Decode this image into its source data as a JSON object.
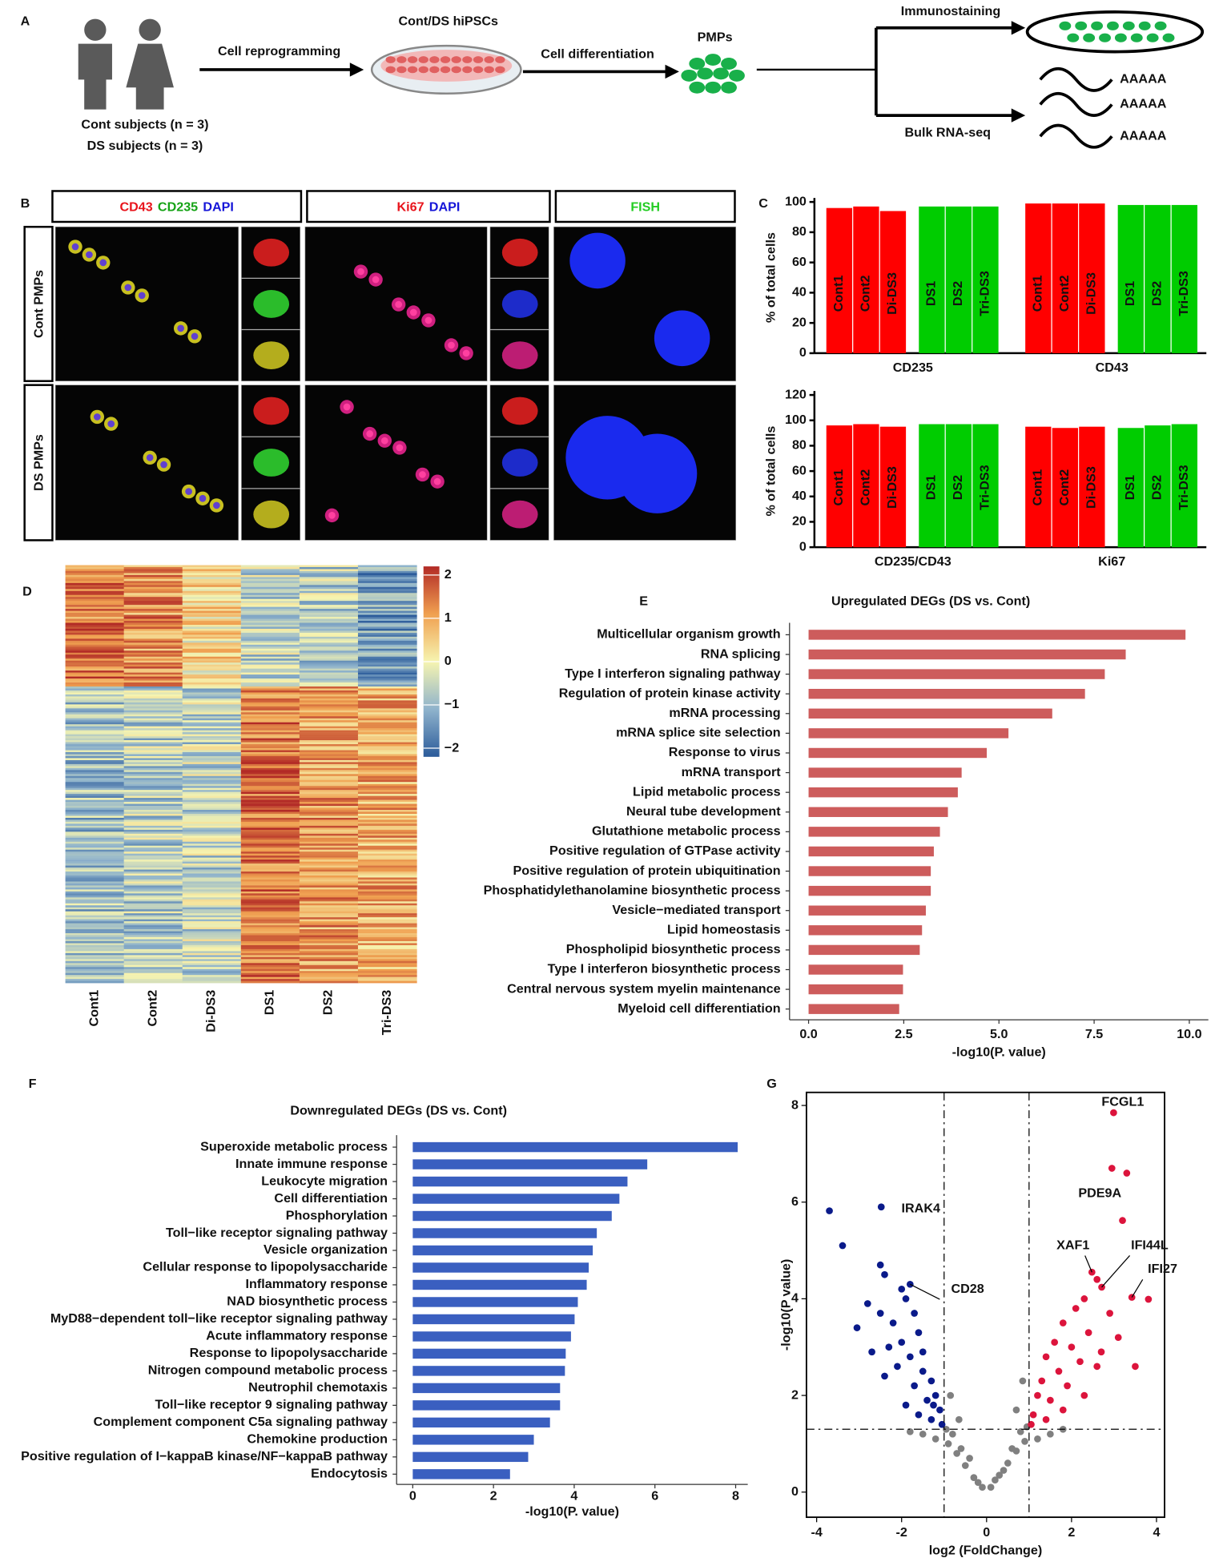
{
  "panel_labels": [
    "A",
    "B",
    "C",
    "D",
    "E",
    "F",
    "G"
  ],
  "panel_a": {
    "subjects": [
      "Cont subjects (n = 3)",
      "DS subjects (n = 3)"
    ],
    "steps": [
      "Cell reprogramming",
      "Cell differentiation",
      "Immunostaining",
      "Bulk RNA-seq"
    ],
    "nodes": [
      "Cont/DS hiPSCs",
      "PMPs"
    ],
    "poly_a": [
      "AAAAA",
      "AAAAA",
      "AAAAA"
    ]
  },
  "panel_b": {
    "headers": [
      [
        {
          "text": "CD43",
          "color": "#e8141c"
        },
        {
          "text": "CD235",
          "color": "#16a316"
        },
        {
          "text": "DAPI",
          "color": "#1515d8"
        }
      ],
      [
        {
          "text": "Ki67",
          "color": "#e8141c"
        },
        {
          "text": "DAPI",
          "color": "#1515d8"
        }
      ],
      [
        {
          "text": "FISH",
          "color": "#22cc22"
        }
      ]
    ],
    "rows": [
      "Cont PMPs",
      "DS PMPs"
    ]
  },
  "chart_data": [
    {
      "type": "bar",
      "ylabel": "% of total cells",
      "categories": [
        "Cont1",
        "Cont2",
        "Di-DS3",
        "DS1",
        "DS2",
        "Tri-DS3"
      ],
      "colors": [
        "#ff0000",
        "#ff0000",
        "#ff0000",
        "#00cc00",
        "#00cc00",
        "#00cc00"
      ],
      "series": [
        {
          "name": "CD235",
          "values": [
            96,
            97,
            94,
            97,
            97,
            97
          ]
        },
        {
          "name": "CD43",
          "values": [
            99,
            99,
            99,
            98,
            98,
            98
          ]
        }
      ],
      "ylim": [
        0,
        100
      ],
      "yticks": [
        0,
        20,
        40,
        60,
        80,
        100
      ]
    },
    {
      "type": "bar",
      "ylabel": "% of total cells",
      "categories": [
        "Cont1",
        "Cont2",
        "Di-DS3",
        "DS1",
        "DS2",
        "Tri-DS3"
      ],
      "colors": [
        "#ff0000",
        "#ff0000",
        "#ff0000",
        "#00cc00",
        "#00cc00",
        "#00cc00"
      ],
      "series": [
        {
          "name": "CD235/CD43",
          "values": [
            96,
            97,
            95,
            97,
            97,
            97
          ]
        },
        {
          "name": "Ki67",
          "values": [
            95,
            94,
            95,
            94,
            96,
            97
          ]
        }
      ],
      "ylim": [
        0,
        120
      ],
      "yticks": [
        0,
        20,
        40,
        60,
        80,
        100,
        120
      ]
    },
    {
      "type": "heatmap",
      "categories": [
        "Cont1",
        "Cont2",
        "Di-DS3",
        "DS1",
        "DS2",
        "Tri-DS3"
      ],
      "zlim": [
        -2.2,
        2.2
      ],
      "zticks": [
        2,
        1,
        0,
        {
          "value": -1,
          "label": "−1"
        },
        {
          "value": -2,
          "label": "−2"
        }
      ]
    },
    {
      "type": "hbar",
      "title": "Upregulated DEGs (DS vs. Cont)",
      "xlabel": "-log10(P. value)",
      "color": "#cd5c5c",
      "categories": [
        "Multicellular organism growth",
        "RNA splicing",
        "Type I interferon signaling pathway",
        "Regulation of protein kinase activity",
        "mRNA processing",
        "mRNA splice site selection",
        "Response to virus",
        "mRNA transport",
        "Lipid metabolic process",
        "Neural tube development",
        "Glutathione metabolic process",
        "Positive regulation of GTPase activity",
        "Positive regulation of protein ubiquitination",
        "Phosphatidylethanolamine biosynthetic process",
        "Vesicle−mediated transport",
        "Lipid homeostasis",
        "Phospholipid biosynthetic process",
        "Type I interferon biosynthetic process",
        "Central nervous system myelin maintenance",
        "Myeloid cell differentiation"
      ],
      "values": [
        9.9,
        8.33,
        7.78,
        7.26,
        6.4,
        5.25,
        4.68,
        4.02,
        3.92,
        3.66,
        3.45,
        3.29,
        3.21,
        3.21,
        3.08,
        2.98,
        2.92,
        2.48,
        2.48,
        2.38
      ],
      "xlim": [
        -0.5,
        10.5
      ],
      "xticks": [
        {
          "value": 0,
          "label": "0.0"
        },
        2.5,
        {
          "value": 5,
          "label": "5.0"
        },
        7.5,
        {
          "value": 10,
          "label": "10.0"
        }
      ]
    },
    {
      "type": "hbar",
      "title": "Downregulated DEGs (DS vs. Cont)",
      "xlabel": "-log10(P. value)",
      "color": "#3a5fc0",
      "categories": [
        "Superoxide metabolic process",
        "Innate immune response",
        "Leukocyte migration",
        "Cell differentiation",
        "Phosphorylation",
        "Toll−like receptor signaling pathway",
        "Vesicle organization",
        "Cellular response to lipopolysaccharide",
        "Inflammatory response",
        "NAD biosynthetic process",
        "MyD88−dependent toll−like receptor signaling pathway",
        "Acute inflammatory response",
        "Response to lipopolysaccharide",
        "Nitrogen compound metabolic process",
        "Neutrophil chemotaxis",
        "Toll−like receptor 9 signaling pathway",
        "Complement component C5a signaling pathway",
        "Chemokine production",
        "Positive regulation of I−kappaB kinase/NF−kappaB pathway",
        "Endocytosis"
      ],
      "values": [
        8.05,
        5.81,
        5.32,
        5.12,
        4.93,
        4.56,
        4.46,
        4.36,
        4.31,
        4.09,
        4.01,
        3.92,
        3.79,
        3.77,
        3.65,
        3.65,
        3.4,
        3.0,
        2.86,
        2.41
      ],
      "xlim": [
        -0.4,
        8.3
      ],
      "xticks": [
        0,
        2,
        4,
        6,
        8
      ]
    },
    {
      "type": "scatter",
      "xlabel": "log2 (FoldChange)",
      "ylabel": "-log10(P value)",
      "xlim": [
        -4.24,
        4.19
      ],
      "ylim": [
        -0.52,
        8.27
      ],
      "xticks": [
        -4,
        -2,
        0,
        2,
        4
      ],
      "yticks": [
        0,
        2,
        4,
        6,
        8
      ],
      "vlines": [
        -1,
        1
      ],
      "hline": 1.3,
      "series": [
        {
          "color": "#808080",
          "x": [
            -0.1,
            0.1,
            -0.3,
            0.3,
            -0.5,
            0.5,
            -0.7,
            0.7,
            -0.9,
            0.9,
            -0.8,
            0.8,
            -1.2,
            1.2,
            -1.5,
            1.5,
            -0.6,
            0.6,
            -0.4,
            0.4,
            -0.2,
            0.2,
            -0.95,
            0.95,
            -1.8,
            1.8,
            -0.65,
            0.7,
            -0.85,
            0.85
          ],
          "y": [
            0.1,
            0.1,
            0.3,
            0.35,
            0.55,
            0.6,
            0.8,
            0.85,
            1.0,
            1.05,
            1.2,
            1.25,
            1.1,
            1.1,
            1.2,
            1.2,
            0.9,
            0.9,
            0.7,
            0.45,
            0.2,
            0.25,
            1.3,
            1.35,
            1.25,
            1.3,
            1.5,
            1.7,
            2.0,
            2.3
          ]
        },
        {
          "color": "#0a1a8a",
          "x": [
            -3.7,
            -3.39,
            -2.48,
            -2.5,
            -2.4,
            -1.8,
            -2.0,
            -1.9,
            -2.8,
            -2.5,
            -2.2,
            -1.7,
            -3.05,
            -2.3,
            -2.7,
            -2.0,
            -1.6,
            -1.8,
            -2.1,
            -1.5,
            -1.3,
            -1.7,
            -1.2,
            -1.4,
            -1.1,
            -1.6,
            -1.9,
            -1.3,
            -1.05,
            -2.4,
            -1.5,
            -1.25
          ],
          "y": [
            5.82,
            5.1,
            5.9,
            4.7,
            4.5,
            4.3,
            4.2,
            4.0,
            3.9,
            3.7,
            3.5,
            3.7,
            3.4,
            3.0,
            2.9,
            3.1,
            3.3,
            2.8,
            2.6,
            2.5,
            2.3,
            2.2,
            2.0,
            1.9,
            1.7,
            1.6,
            1.8,
            1.5,
            1.4,
            2.4,
            2.9,
            1.8
          ]
        },
        {
          "color": "#dc143c",
          "x": [
            2.99,
            3.3,
            2.95,
            3.2,
            2.48,
            2.71,
            3.42,
            3.81,
            2.6,
            2.3,
            2.1,
            2.9,
            1.8,
            2.4,
            1.6,
            2.0,
            3.1,
            1.4,
            2.2,
            1.7,
            2.6,
            1.3,
            1.9,
            1.2,
            1.5,
            2.3,
            1.1,
            1.4,
            1.8,
            1.05,
            2.7,
            3.5
          ],
          "y": [
            7.85,
            6.6,
            6.7,
            5.62,
            4.55,
            4.24,
            4.03,
            3.99,
            4.4,
            4.0,
            3.8,
            3.7,
            3.5,
            3.3,
            3.1,
            3.0,
            3.2,
            2.8,
            2.7,
            2.5,
            2.6,
            2.3,
            2.2,
            2.0,
            1.9,
            2.0,
            1.6,
            1.5,
            1.7,
            1.4,
            2.9,
            2.6
          ]
        }
      ],
      "annotations": [
        {
          "text": "FCGL1",
          "x": 2.99,
          "y": 7.85,
          "color": "#dc143c"
        },
        {
          "text": "PDE9A",
          "x": 2.95,
          "y": 6.7,
          "color": "#dc143c"
        },
        {
          "text": "IRAK4",
          "x": -2.48,
          "y": 5.9,
          "color": "#1a2aa8"
        },
        {
          "text": "XAF1",
          "x": 2.48,
          "y": 4.55,
          "color": "#dc143c"
        },
        {
          "text": "IFI44L",
          "x": 2.71,
          "y": 4.24,
          "color": "#dc143c"
        },
        {
          "text": "IFI27",
          "x": 3.42,
          "y": 4.03,
          "color": "#dc143c"
        },
        {
          "text": "CD28",
          "x": -1.8,
          "y": 4.3,
          "color": "#1a2aa8"
        }
      ]
    }
  ]
}
